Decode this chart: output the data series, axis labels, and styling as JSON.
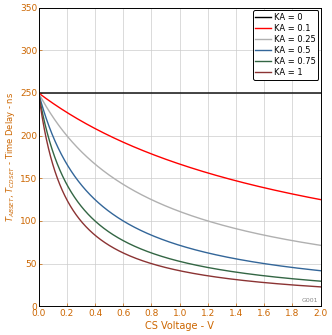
{
  "title": "",
  "xlabel": "CS Voltage - V",
  "xlim": [
    0,
    2.0
  ],
  "ylim": [
    0,
    350
  ],
  "xticks": [
    0,
    0.2,
    0.4,
    0.6,
    0.8,
    1.0,
    1.2,
    1.4,
    1.6,
    1.8,
    2.0
  ],
  "yticks": [
    0,
    50,
    100,
    150,
    200,
    250,
    300,
    350
  ],
  "T0": 250,
  "scale_factor": 5.0,
  "KA_values": [
    0,
    0.1,
    0.25,
    0.5,
    0.75,
    1.0
  ],
  "colors": [
    "#000000",
    "#ff0000",
    "#b0b0b0",
    "#336699",
    "#336644",
    "#8b3333"
  ],
  "labels": [
    "KA = 0",
    "KA = 0.1",
    "KA = 0.25",
    "KA = 0.5",
    "KA = 0.75",
    "KA = 1"
  ],
  "linewidth": 1.0,
  "grid_color": "#cccccc",
  "background_color": "#ffffff",
  "watermark": "G001",
  "tick_color": "#cc6600",
  "label_color": "#cc6600",
  "tick_fontsize": 6.5,
  "xlabel_fontsize": 7.0,
  "ylabel_fontsize": 6.0,
  "legend_fontsize": 6.0
}
